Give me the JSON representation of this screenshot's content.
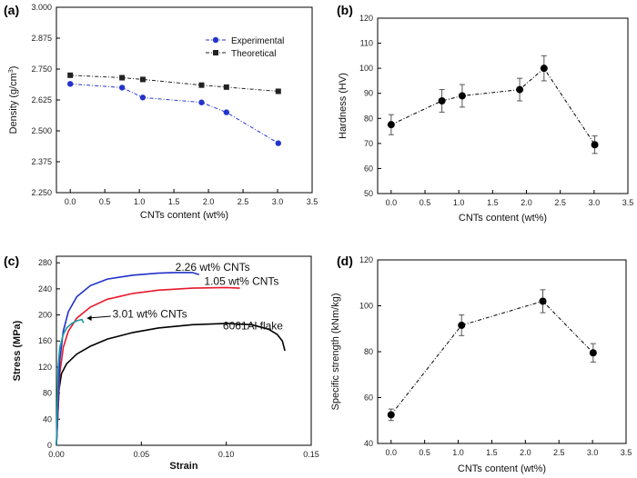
{
  "chart_data": [
    {
      "panel": "(a)",
      "type": "line",
      "xlabel": "CNTs content (wt%)",
      "ylabel": "Density (g/cm3)",
      "xlim": [
        -0.2,
        3.5
      ],
      "ylim": [
        2.25,
        3.0
      ],
      "xticks": [
        "0.0",
        "0.5",
        "1.0",
        "1.5",
        "2.0",
        "2.5",
        "3.0",
        "3.5"
      ],
      "yticks": [
        "2.250",
        "2.375",
        "2.500",
        "2.625",
        "2.750",
        "2.875",
        "3.000"
      ],
      "legend_position": "top-right",
      "grid": false,
      "series": [
        {
          "name": "Experimental",
          "color": "#2433cc",
          "marker": "circle",
          "x": [
            0,
            0.75,
            1.05,
            1.9,
            2.26,
            3.01
          ],
          "y": [
            2.69,
            2.675,
            2.635,
            2.615,
            2.575,
            2.45
          ]
        },
        {
          "name": "Theoretical",
          "color": "#222222",
          "marker": "square",
          "x": [
            0,
            0.75,
            1.05,
            1.9,
            2.26,
            3.01
          ],
          "y": [
            2.725,
            2.715,
            2.708,
            2.685,
            2.677,
            2.66
          ]
        }
      ]
    },
    {
      "panel": "(b)",
      "type": "line",
      "xlabel": "CNTs content (wt%)",
      "ylabel": "Hardness (HV)",
      "xlim": [
        -0.2,
        3.5
      ],
      "ylim": [
        50,
        120
      ],
      "xticks": [
        "0.0",
        "0.5",
        "1.0",
        "1.5",
        "2.0",
        "2.5",
        "3.0",
        "3.5"
      ],
      "yticks": [
        "50",
        "60",
        "70",
        "80",
        "90",
        "100",
        "110",
        "120"
      ],
      "grid": false,
      "series": [
        {
          "color": "#000000",
          "marker": "circle",
          "x": [
            0,
            0.75,
            1.05,
            1.9,
            2.26,
            3.01
          ],
          "y": [
            77.5,
            87,
            89,
            91.5,
            100,
            69.5
          ],
          "err": [
            4,
            4.5,
            4.5,
            4.5,
            5,
            3.5
          ]
        }
      ]
    },
    {
      "panel": "(c)",
      "type": "line",
      "xlabel": "Strain",
      "ylabel": "Stress (MPa)",
      "xlim": [
        0,
        0.15
      ],
      "ylim": [
        0,
        290
      ],
      "xticks": [
        "0.00",
        "0.05",
        "0.10",
        "0.15"
      ],
      "yticks": [
        "0",
        "40",
        "80",
        "120",
        "160",
        "200",
        "240",
        "280"
      ],
      "grid": false,
      "annotations": [
        {
          "text": "2.26 wt% CNTs",
          "x": 0.07,
          "y": 268
        },
        {
          "text": "1.05 wt% CNTs",
          "x": 0.087,
          "y": 246
        },
        {
          "text": "3.01 wt% CNTs",
          "x": 0.033,
          "y": 196
        },
        {
          "text": "6061Al flake",
          "x": 0.098,
          "y": 178
        }
      ],
      "series": [
        {
          "name": "6061Al flake",
          "color": "#000000",
          "x": [
            0,
            0.0015,
            0.003,
            0.006,
            0.012,
            0.02,
            0.03,
            0.045,
            0.06,
            0.08,
            0.1,
            0.115,
            0.125,
            0.13,
            0.133,
            0.1345
          ],
          "y": [
            0,
            85,
            110,
            125,
            140,
            152,
            163,
            173,
            180,
            185,
            187,
            185,
            178,
            170,
            160,
            145
          ]
        },
        {
          "name": "1.05 wt% CNTs",
          "color": "#e8192c",
          "x": [
            0,
            0.002,
            0.004,
            0.007,
            0.012,
            0.02,
            0.03,
            0.045,
            0.06,
            0.08,
            0.1,
            0.108
          ],
          "y": [
            0,
            110,
            150,
            175,
            195,
            212,
            224,
            233,
            238,
            241,
            242,
            241
          ]
        },
        {
          "name": "2.26 wt% CNTs",
          "color": "#2030c8",
          "x": [
            0,
            0.002,
            0.004,
            0.007,
            0.012,
            0.02,
            0.03,
            0.045,
            0.06,
            0.07,
            0.08,
            0.084
          ],
          "y": [
            0,
            130,
            175,
            205,
            228,
            245,
            255,
            261,
            264,
            265,
            265,
            262
          ]
        },
        {
          "name": "3.01 wt% CNTs",
          "color": "#1a9aa6",
          "x": [
            0,
            0.001,
            0.002,
            0.004,
            0.006,
            0.009,
            0.012,
            0.015,
            0.016
          ],
          "y": [
            0,
            120,
            150,
            170,
            180,
            187,
            191,
            193,
            188
          ]
        }
      ]
    },
    {
      "panel": "(d)",
      "type": "line",
      "xlabel": "CNTs content (wt%)",
      "ylabel": "Specific strength (kNm/kg)",
      "xlim": [
        -0.2,
        3.5
      ],
      "ylim": [
        40,
        120
      ],
      "xticks": [
        "0.0",
        "0.5",
        "1.0",
        "1.5",
        "2.0",
        "2.5",
        "3.0",
        "3.5"
      ],
      "yticks": [
        "40",
        "60",
        "80",
        "100",
        "120"
      ],
      "grid": false,
      "series": [
        {
          "color": "#000000",
          "marker": "circle",
          "x": [
            0,
            1.05,
            2.26,
            3.01
          ],
          "y": [
            52.5,
            91.5,
            102,
            79.5
          ],
          "err": [
            2.5,
            4.5,
            5,
            4
          ]
        }
      ]
    }
  ]
}
